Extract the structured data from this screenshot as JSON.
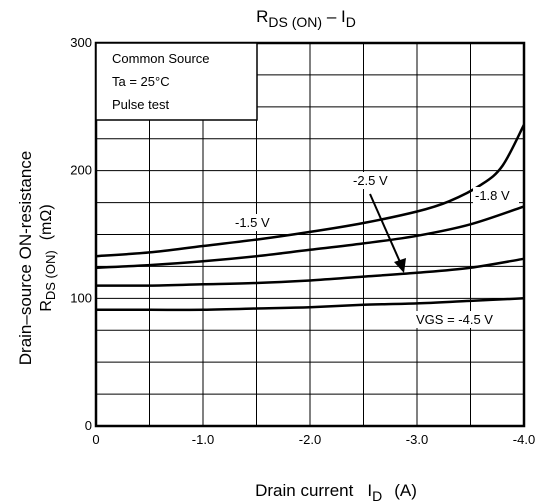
{
  "chart_data": {
    "type": "line",
    "title": {
      "main": "R",
      "sub": "DS (ON)",
      "sep": " – ",
      "main2": "I",
      "sub2": "D"
    },
    "xlabel": {
      "text": "Drain current",
      "sym": "I",
      "sub": "D",
      "unit": "(A)"
    },
    "ylabel": {
      "line1": "Drain–source ON-resistance",
      "sym": "R",
      "sub": "DS (ON)",
      "unit": "(mΩ)"
    },
    "x_ticks": [
      "0",
      "-1.0",
      "-2.0",
      "-3.0",
      "-4.0"
    ],
    "x_tick_values": [
      0,
      -1,
      -2,
      -3,
      -4
    ],
    "y_ticks": [
      "0",
      "100",
      "200",
      "300"
    ],
    "y_tick_values": [
      0,
      100,
      200,
      300
    ],
    "xlim": [
      0,
      -4
    ],
    "ylim": [
      0,
      300
    ],
    "x_minor_step": -0.5,
    "y_minor_step": 25,
    "grid": true,
    "conditions": [
      "Common Source",
      "Ta = 25°C",
      "Pulse test"
    ],
    "series": [
      {
        "name": "-1.5 V",
        "x": [
          0,
          -0.5,
          -1.0,
          -1.5,
          -2.0,
          -2.5,
          -3.0,
          -3.3,
          -3.6,
          -3.8,
          -4.0
        ],
        "y": [
          133,
          136,
          141,
          146,
          152,
          159,
          168,
          176,
          189,
          204,
          236
        ]
      },
      {
        "name": "-1.8 V",
        "x": [
          0,
          -0.5,
          -1.0,
          -1.5,
          -2.0,
          -2.5,
          -3.0,
          -3.5,
          -4.0
        ],
        "y": [
          124,
          126,
          129,
          133,
          138,
          143,
          149,
          158,
          172
        ]
      },
      {
        "name": "-2.5 V",
        "x": [
          0,
          -0.5,
          -1.0,
          -1.5,
          -2.0,
          -2.5,
          -3.0,
          -3.5,
          -4.0
        ],
        "y": [
          110,
          110,
          111,
          112,
          114,
          117,
          120,
          124,
          131
        ]
      },
      {
        "name": "VGS = -4.5 V",
        "x": [
          0,
          -0.5,
          -1.0,
          -1.5,
          -2.0,
          -2.5,
          -3.0,
          -3.5,
          -4.0
        ],
        "y": [
          91,
          91,
          91,
          92,
          93,
          95,
          96,
          98,
          100
        ]
      }
    ],
    "annotations": [
      "-1.5 V",
      "-2.5 V",
      "-1.8 V",
      "VGS = -4.5 V"
    ]
  }
}
